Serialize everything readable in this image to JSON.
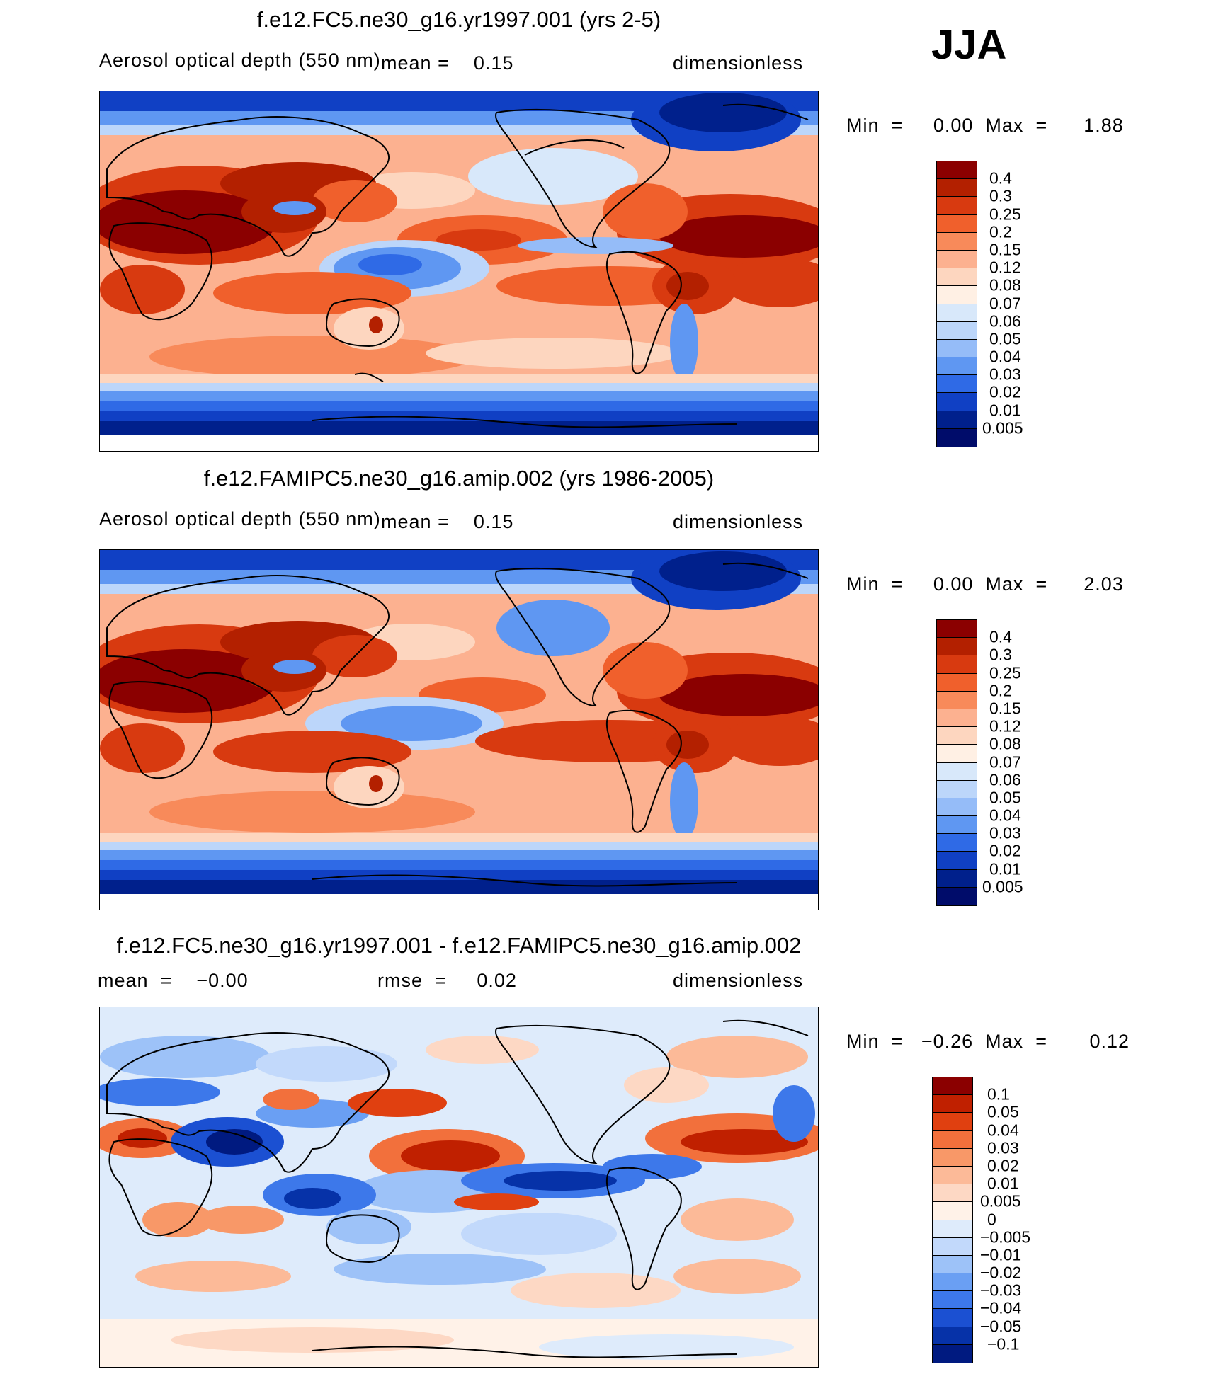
{
  "season": "JJA",
  "panels": [
    {
      "title": "f.e12.FC5.ne30_g16.yr1997.001 (yrs 2-5)",
      "variable": "Aerosol optical depth (550 nm)",
      "mean_label": "mean",
      "eq": "=",
      "mean": "0.15",
      "units": "dimensionless",
      "min_label": "Min",
      "min": "0.00",
      "max_label": "Max",
      "max": "1.88",
      "levels": [
        "0.4",
        "0.3",
        "0.25",
        "0.2",
        "0.15",
        "0.12",
        "0.08",
        "0.07",
        "0.06",
        "0.05",
        "0.04",
        "0.03",
        "0.02",
        "0.01",
        "0.005"
      ]
    },
    {
      "title": "f.e12.FAMIPC5.ne30_g16.amip.002 (yrs 1986-2005)",
      "variable": "Aerosol optical depth (550 nm)",
      "mean_label": "mean",
      "eq": "=",
      "mean": "0.15",
      "units": "dimensionless",
      "min_label": "Min",
      "min": "0.00",
      "max_label": "Max",
      "max": "2.03",
      "levels": [
        "0.4",
        "0.3",
        "0.25",
        "0.2",
        "0.15",
        "0.12",
        "0.08",
        "0.07",
        "0.06",
        "0.05",
        "0.04",
        "0.03",
        "0.02",
        "0.01",
        "0.005"
      ]
    },
    {
      "title": "f.e12.FC5.ne30_g16.yr1997.001 - f.e12.FAMIPC5.ne30_g16.amip.002",
      "mean_label": "mean",
      "eq": "=",
      "mean": "−0.00",
      "rmse_label": "rmse",
      "rmse": "0.02",
      "units": "dimensionless",
      "min_label": "Min",
      "min": "−0.26",
      "max_label": "Max",
      "max": "0.12",
      "levels": [
        "0.1",
        "0.05",
        "0.04",
        "0.03",
        "0.02",
        "0.01",
        "0.005",
        "0",
        "−0.005",
        "−0.01",
        "−0.02",
        "−0.03",
        "−0.04",
        "−0.05",
        "−0.1"
      ]
    }
  ],
  "colors": {
    "abs_scale": [
      "#8b0000",
      "#b32000",
      "#d83a10",
      "#f0602c",
      "#f88a5a",
      "#fcb190",
      "#fdd6bf",
      "#fff0e4",
      "#d8e8fa",
      "#bcd6fa",
      "#95bcf8",
      "#5f97f2",
      "#2f6ae6",
      "#1040c4",
      "#00208c",
      "#000c6a"
    ],
    "diff_scale": [
      "#8b0000",
      "#c02000",
      "#e04010",
      "#f2703c",
      "#f89868",
      "#fcba98",
      "#fdd8c4",
      "#fff2e8",
      "#deebfb",
      "#c2d9fb",
      "#9dc2f8",
      "#6a9ff3",
      "#3d78ea",
      "#1b50d2",
      "#0632a8",
      "#001a80"
    ],
    "land_outline": "#000000"
  }
}
